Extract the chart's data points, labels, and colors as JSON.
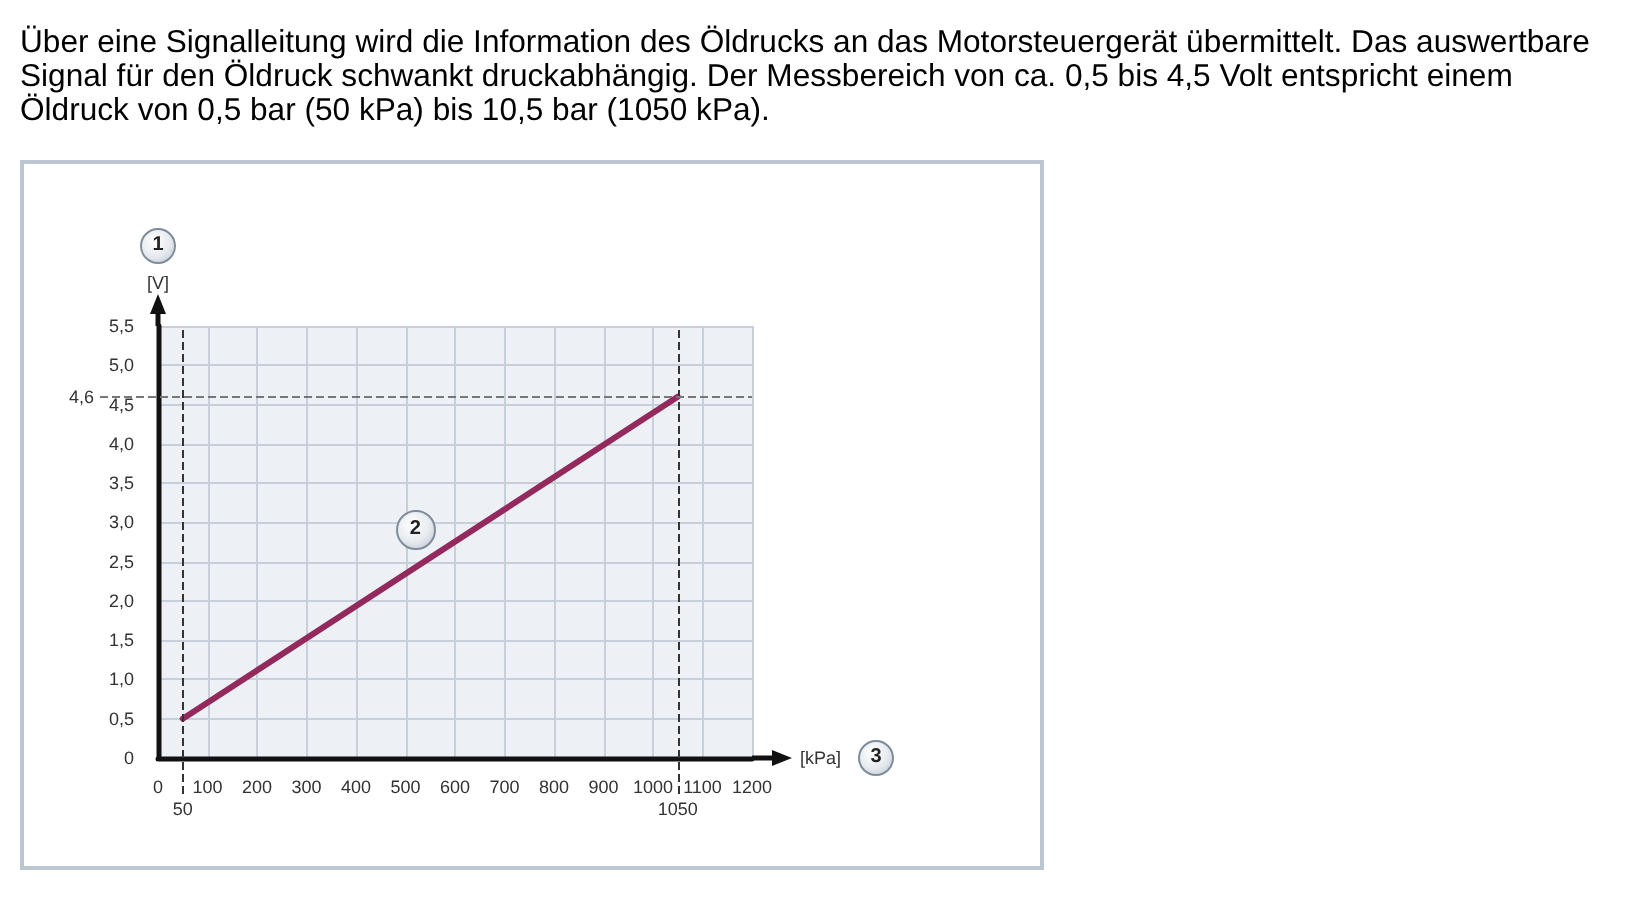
{
  "chart_data": {
    "type": "line",
    "title": "Über eine Signalleitung wird die Information des Öldrucks an das Motorsteuergerät übermittelt. Das auswertbare Signal für den Öldruck schwankt druckabhängig. Der Messbereich von ca. 0,5 bis 4,5 Volt entspricht einem Öldruck von 0,5 bar (50 kPa) bis 10,5 bar (1050 kPa).",
    "xlabel": "[kPa]",
    "ylabel": "[V]",
    "annotations": [
      "1",
      {
        "text": "2",
        "x": 520,
        "y": 2.9
      },
      "3"
    ],
    "x": [
      50,
      1050
    ],
    "values": [
      0.5,
      4.6
    ],
    "color": "#93295d",
    "xlim": [
      0,
      1200
    ],
    "xticks": [
      0,
      100,
      200,
      300,
      400,
      500,
      600,
      700,
      800,
      900,
      1000,
      1100,
      1200
    ],
    "ylim": [
      0,
      5.5
    ],
    "yticks": [
      0,
      {
        "value": 0.5,
        "label": "0,5"
      },
      {
        "value": 1,
        "label": "1,0"
      },
      {
        "value": 1.5,
        "label": "1,5"
      },
      {
        "value": 2,
        "label": "2,0"
      },
      {
        "value": 2.5,
        "label": "2,5"
      },
      {
        "value": 3,
        "label": "3,0"
      },
      {
        "value": 3.5,
        "label": "3,5"
      },
      {
        "value": 4,
        "label": "4,0"
      },
      {
        "value": 4.5,
        "label": "4,5"
      },
      {
        "value": 5,
        "label": "5,0"
      },
      {
        "value": 5.5,
        "label": "5,5"
      }
    ],
    "ref_lines": [
      {
        "axis": "x",
        "value": 50,
        "label": "50",
        "color": "#333333",
        "line_style": "dashed"
      },
      {
        "axis": "x",
        "value": 1050,
        "label": "1050",
        "color": "#333333",
        "line_style": "dashed"
      },
      {
        "axis": "y",
        "value": 4.6,
        "label": "4,6",
        "color": "#777777",
        "line_style": "dashed"
      }
    ],
    "grid": true,
    "marker": "none",
    "line_style": "solid"
  }
}
